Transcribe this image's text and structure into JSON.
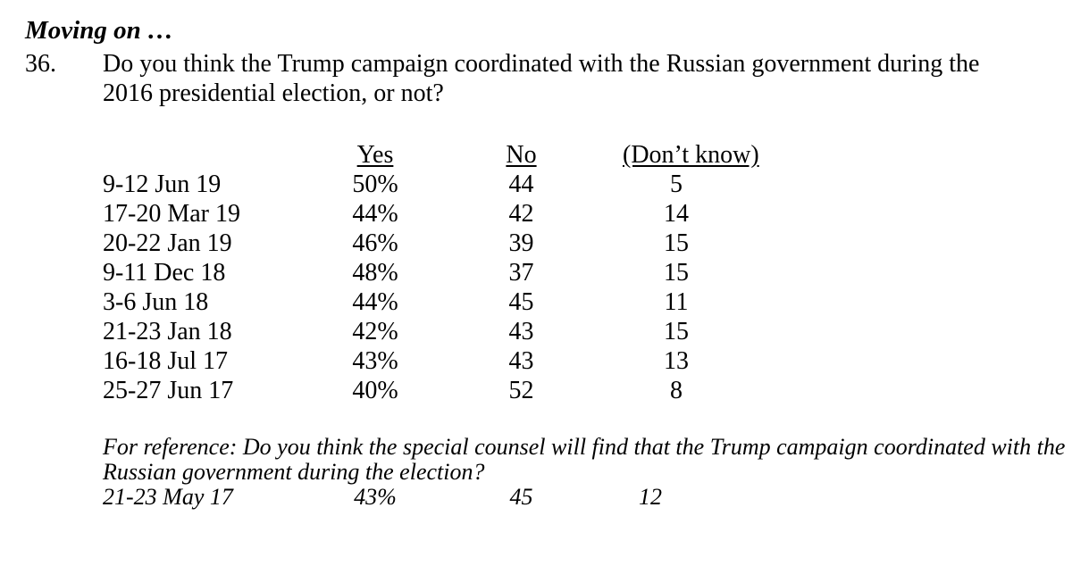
{
  "page": {
    "section_header": "Moving on …",
    "question": {
      "number": "36.",
      "line1": "Do you think the Trump campaign coordinated with the Russian government during the",
      "line2": "2016 presidential election, or not?"
    },
    "table": {
      "columns": [
        "Yes",
        "No",
        "(Don’t know)"
      ],
      "rows": [
        {
          "date": "9-12 Jun 19",
          "yes": "50%",
          "no": "44",
          "dk": "5"
        },
        {
          "date": "17-20 Mar 19",
          "yes": "44%",
          "no": "42",
          "dk": "14"
        },
        {
          "date": "20-22 Jan 19",
          "yes": "46%",
          "no": "39",
          "dk": "15"
        },
        {
          "date": "9-11 Dec 18",
          "yes": "48%",
          "no": "37",
          "dk": "15"
        },
        {
          "date": "3-6 Jun 18",
          "yes": "44%",
          "no": "45",
          "dk": "11"
        },
        {
          "date": "21-23 Jan 18",
          "yes": "42%",
          "no": "43",
          "dk": "15"
        },
        {
          "date": "16-18 Jul 17",
          "yes": "43%",
          "no": "43",
          "dk": "13"
        },
        {
          "date": "25-27 Jun 17",
          "yes": "40%",
          "no": "52",
          "dk": "8"
        }
      ]
    },
    "reference": {
      "note_line1": "For reference: Do you think the special counsel will find that the Trump campaign coordinated with the",
      "note_line2": "Russian government during the election?",
      "row": {
        "date": "21-23 May 17",
        "yes": "43%",
        "no": "45",
        "dk": "12"
      }
    }
  }
}
